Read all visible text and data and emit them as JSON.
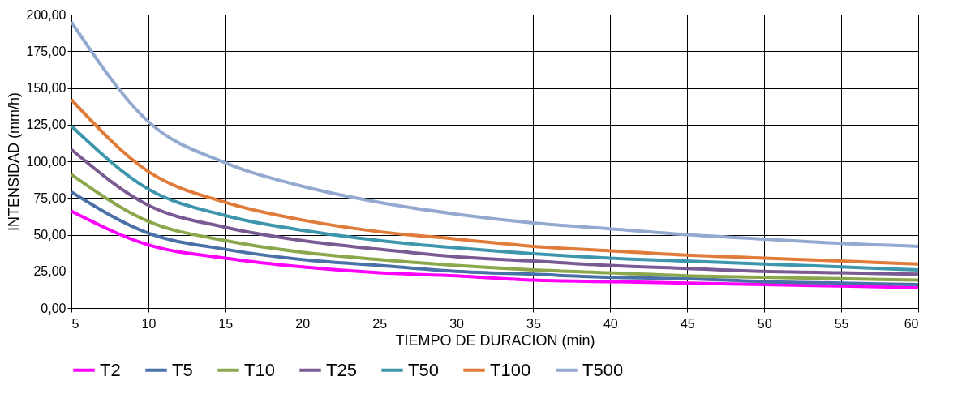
{
  "chart_data": {
    "type": "line",
    "xlabel": "TIEMPO DE DURACION (min)",
    "ylabel": "INTENSIDAD (mm/h)",
    "x": [
      5,
      10,
      15,
      20,
      25,
      30,
      35,
      40,
      45,
      50,
      55,
      60
    ],
    "series": [
      {
        "name": "T2",
        "color": "#ff00ff",
        "values": [
          66,
          43,
          34,
          28,
          24,
          22,
          19,
          18,
          17,
          16,
          15,
          14
        ]
      },
      {
        "name": "T5",
        "color": "#4a70a8",
        "values": [
          79,
          51,
          40,
          33,
          29,
          25,
          23,
          21,
          20,
          18,
          17,
          16
        ]
      },
      {
        "name": "T10",
        "color": "#8aa84b",
        "values": [
          91,
          59,
          46,
          38,
          33,
          29,
          26,
          24,
          22,
          21,
          20,
          19
        ]
      },
      {
        "name": "T25",
        "color": "#7a5a92",
        "values": [
          108,
          70,
          55,
          46,
          40,
          35,
          32,
          29,
          27,
          25,
          24,
          23
        ]
      },
      {
        "name": "T50",
        "color": "#3e96ad",
        "values": [
          124,
          81,
          63,
          53,
          46,
          41,
          37,
          34,
          32,
          30,
          28,
          26
        ]
      },
      {
        "name": "T100",
        "color": "#e07b39",
        "values": [
          142,
          93,
          72,
          60,
          52,
          47,
          42,
          39,
          36,
          34,
          32,
          30
        ]
      },
      {
        "name": "T500",
        "color": "#93a9d0",
        "values": [
          195,
          127,
          99,
          83,
          72,
          64,
          58,
          54,
          50,
          47,
          44,
          42
        ]
      }
    ],
    "xlim": [
      5,
      60
    ],
    "xticks": [
      5,
      10,
      15,
      20,
      25,
      30,
      35,
      40,
      45,
      50,
      55,
      60
    ],
    "ylim": [
      0,
      200
    ],
    "yticks": [
      {
        "value": 0,
        "label": "0,00"
      },
      {
        "value": 25,
        "label": "25,00"
      },
      {
        "value": 50,
        "label": "50,00"
      },
      {
        "value": 75,
        "label": "75,00"
      },
      {
        "value": 100,
        "label": "100,00"
      },
      {
        "value": 125,
        "label": "125,00"
      },
      {
        "value": 150,
        "label": "150,00"
      },
      {
        "value": 175,
        "label": "175,00"
      },
      {
        "value": 200,
        "label": "200,00"
      }
    ],
    "grid": true,
    "legend": "bottom",
    "marker": "none",
    "line_style": "solid"
  }
}
